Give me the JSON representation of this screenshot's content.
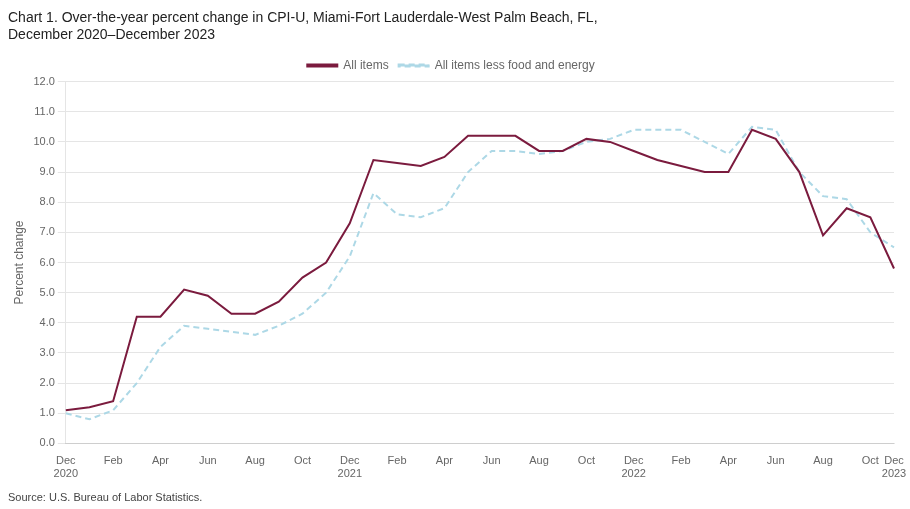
{
  "chart_data": {
    "type": "line",
    "title": "Chart 1. Over-the-year percent change in CPI-U, Miami-Fort Lauderdale-West Palm Beach, FL,",
    "subtitle": "December 2020–December 2023",
    "y_label": "Percent change",
    "source": "Source: U.S. Bureau of Labor Statistics.",
    "categories": [
      "Dec\n2020",
      null,
      "Feb",
      null,
      "Apr",
      null,
      "Jun",
      null,
      "Aug",
      null,
      "Oct",
      null,
      "Dec\n2021",
      null,
      "Feb",
      null,
      "Apr",
      null,
      "Jun",
      null,
      "Aug",
      null,
      "Oct",
      null,
      "Dec\n2022",
      null,
      "Feb",
      null,
      "Apr",
      null,
      "Jun",
      null,
      "Aug",
      null,
      "Oct",
      "Dec\n2023"
    ],
    "series": [
      {
        "name": "All items",
        "color": "#7B1B3E",
        "line_style": "solid",
        "values": [
          1.1,
          1.2,
          1.4,
          4.2,
          4.2,
          5.1,
          4.9,
          4.3,
          4.3,
          4.7,
          5.5,
          6.0,
          7.3,
          9.4,
          9.3,
          9.2,
          9.5,
          10.2,
          10.2,
          10.2,
          9.7,
          9.7,
          10.1,
          10.0,
          9.7,
          9.4,
          9.2,
          9.0,
          9.0,
          10.4,
          10.1,
          9.0,
          6.9,
          7.8,
          7.5,
          5.8
        ]
      },
      {
        "name": "All items less food and energy",
        "color": "#ADD8E6",
        "line_style": "dashed",
        "values": [
          1.0,
          0.8,
          1.1,
          2.0,
          3.2,
          3.9,
          3.8,
          3.7,
          3.6,
          3.9,
          4.3,
          5.0,
          6.2,
          8.3,
          7.6,
          7.5,
          7.8,
          9.0,
          9.7,
          9.7,
          9.6,
          9.7,
          10.0,
          10.1,
          10.4,
          10.4,
          10.4,
          10.0,
          9.6,
          10.5,
          10.4,
          9.0,
          8.2,
          8.1,
          7.0,
          6.5
        ]
      }
    ],
    "ylim": [
      0.0,
      12.0
    ],
    "yticks": [
      {
        "value": 0,
        "label": "0.0"
      },
      {
        "value": 1,
        "label": "1.0"
      },
      {
        "value": 2,
        "label": "2.0"
      },
      {
        "value": 3,
        "label": "3.0"
      },
      {
        "value": 4,
        "label": "4.0"
      },
      {
        "value": 5,
        "label": "5.0"
      },
      {
        "value": 6,
        "label": "6.0"
      },
      {
        "value": 7,
        "label": "7.0"
      },
      {
        "value": 8,
        "label": "8.0"
      },
      {
        "value": 9,
        "label": "9.0"
      },
      {
        "value": 10,
        "label": "10.0"
      },
      {
        "value": 11,
        "label": "11.0"
      },
      {
        "value": 12,
        "label": "12.0"
      }
    ],
    "grid": "y",
    "legend": "top"
  }
}
